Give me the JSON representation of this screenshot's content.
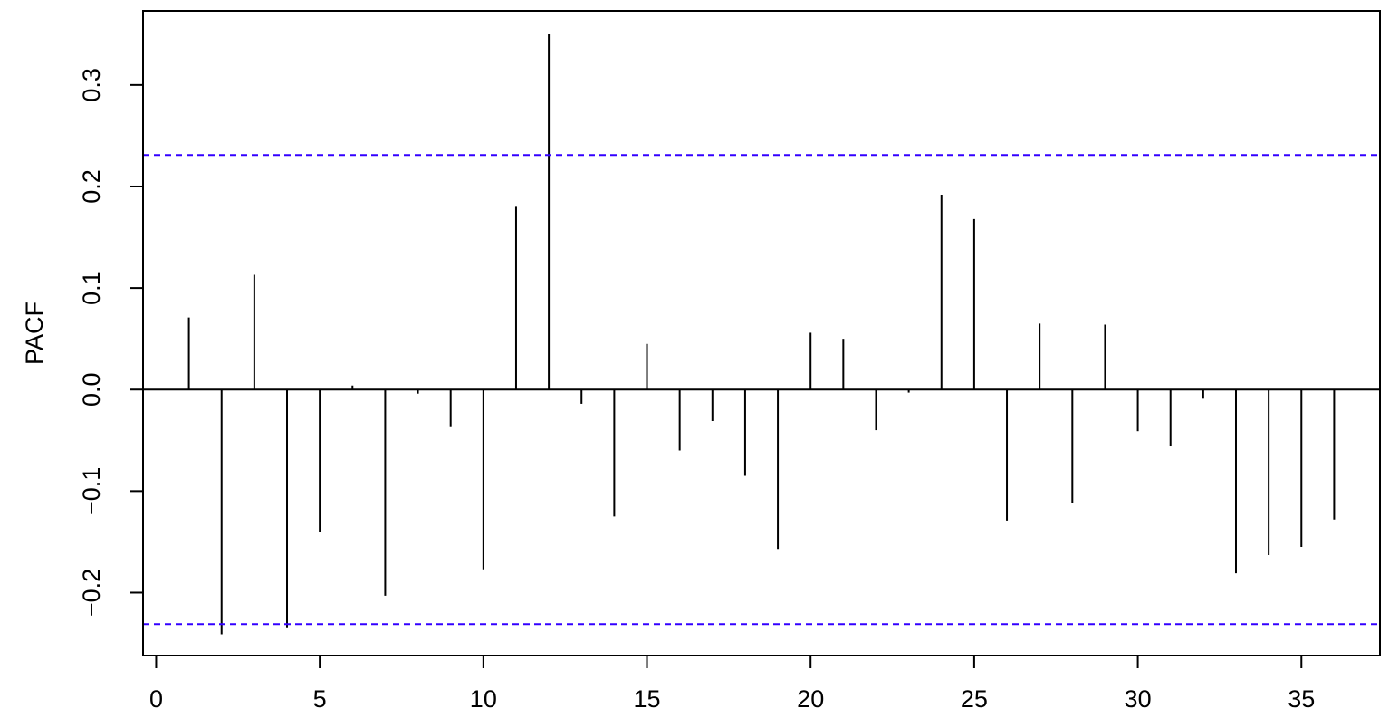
{
  "chart_data": {
    "type": "bar",
    "title": "",
    "xlabel": "",
    "ylabel": "PACF",
    "xlim": [
      -0.4,
      37.4
    ],
    "ylim": [
      -0.262,
      0.373
    ],
    "x_ticks": [
      0,
      5,
      10,
      15,
      20,
      25,
      30,
      35
    ],
    "x_tick_labels": [
      "0",
      "5",
      "10",
      "15",
      "20",
      "25",
      "30",
      "35"
    ],
    "y_ticks": [
      -0.2,
      -0.1,
      0.0,
      0.1,
      0.2,
      0.3
    ],
    "y_tick_labels": [
      "−0.2",
      "−0.1",
      "0.0",
      "0.1",
      "0.2",
      "0.3"
    ],
    "grid": false,
    "legend": "none",
    "confidence_bound": 0.231,
    "colors": {
      "bars": "#000000",
      "confidence_lines": "#3300ff",
      "zero_line": "#000000",
      "frame": "#000000"
    },
    "series": [
      {
        "lags": [
          1,
          2,
          3,
          4,
          5,
          6,
          7,
          8,
          9,
          10,
          11,
          12,
          13,
          14,
          15,
          16,
          17,
          18,
          19,
          20,
          21,
          22,
          23,
          24,
          25,
          26,
          27,
          28,
          29,
          30,
          31,
          32,
          33,
          34,
          35,
          36
        ],
        "values": [
          0.071,
          -0.241,
          0.113,
          -0.235,
          -0.14,
          0.004,
          -0.203,
          -0.004,
          -0.037,
          -0.177,
          0.18,
          0.35,
          -0.014,
          -0.125,
          0.045,
          -0.06,
          -0.031,
          -0.085,
          -0.157,
          0.056,
          0.05,
          -0.04,
          -0.003,
          0.192,
          0.168,
          -0.129,
          0.065,
          -0.112,
          0.064,
          -0.041,
          -0.056,
          -0.009,
          -0.181,
          -0.163,
          -0.155,
          -0.128
        ]
      }
    ]
  }
}
